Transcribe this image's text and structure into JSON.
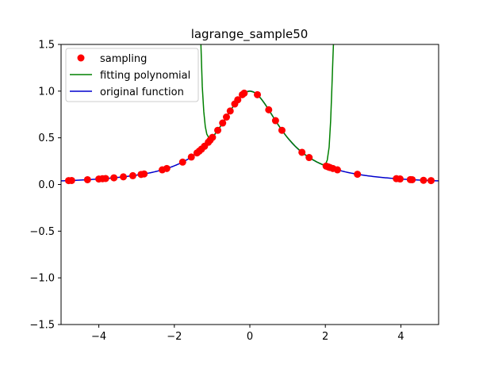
{
  "chart_data": {
    "type": "line",
    "title": "lagrange_sample50",
    "xlabel": "",
    "ylabel": "",
    "xlim": [
      -5,
      5
    ],
    "ylim": [
      -1.5,
      1.5
    ],
    "xticks": [
      -4,
      -2,
      0,
      2,
      4
    ],
    "yticks": [
      -1.5,
      -1.0,
      -0.5,
      0.0,
      0.5,
      1.0,
      1.5
    ],
    "xtick_labels": [
      "−4",
      "−2",
      "0",
      "2",
      "4"
    ],
    "ytick_labels": [
      "−1.5",
      "−1.0",
      "−0.5",
      "0.0",
      "0.5",
      "1.0",
      "1.5"
    ],
    "grid": false,
    "legend_position": "top-left",
    "legend": [
      {
        "label": "sampling",
        "color": "#ff0000",
        "kind": "marker"
      },
      {
        "label": "fitting polynomial",
        "color": "#008000",
        "kind": "line"
      },
      {
        "label": "original function",
        "color": "#0000cd",
        "kind": "line"
      }
    ],
    "sampling": {
      "color": "#ff0000",
      "x": [
        -4.8,
        -4.72,
        -4.3,
        -4.0,
        -3.9,
        -3.82,
        -3.6,
        -3.35,
        -3.1,
        -2.88,
        -2.8,
        -2.32,
        -2.2,
        -1.78,
        -1.55,
        -1.4,
        -1.34,
        -1.28,
        -1.2,
        -1.1,
        -1.05,
        -0.99,
        -0.85,
        -0.72,
        -0.62,
        -0.52,
        -0.4,
        -0.32,
        -0.2,
        -0.15,
        0.2,
        0.5,
        0.68,
        0.85,
        1.38,
        1.57,
        2.02,
        2.08,
        2.12,
        2.2,
        2.32,
        2.85,
        3.88,
        3.98,
        4.25,
        4.3,
        4.6,
        4.8
      ]
    },
    "fitting_polynomial": {
      "color": "#008000",
      "x": [
        -1.3,
        -1.26,
        -1.22,
        -1.18,
        -1.14,
        -1.1,
        -1.05,
        -1.0,
        -0.95,
        -0.9,
        -0.8,
        -0.7,
        -0.6,
        -0.5,
        -0.4,
        -0.3,
        -0.2,
        -0.1,
        0.0,
        0.1,
        0.2,
        0.3,
        0.4,
        0.5,
        0.6,
        0.7,
        0.8,
        0.9,
        1.0,
        1.2,
        1.4,
        1.6,
        1.8,
        1.95,
        2.0,
        2.05,
        2.1,
        2.14,
        2.17,
        2.2,
        2.22
      ],
      "y": [
        1.55,
        1.05,
        0.78,
        0.62,
        0.54,
        0.51,
        0.5,
        0.501,
        0.525,
        0.553,
        0.61,
        0.671,
        0.735,
        0.8,
        0.862,
        0.917,
        0.962,
        0.99,
        1.0,
        0.99,
        0.962,
        0.917,
        0.862,
        0.8,
        0.735,
        0.671,
        0.61,
        0.553,
        0.5,
        0.41,
        0.338,
        0.281,
        0.236,
        0.209,
        0.215,
        0.26,
        0.4,
        0.68,
        1.0,
        1.35,
        1.56
      ]
    },
    "original_function": {
      "color": "#0000cd",
      "formula": "1/(1+x^2)"
    }
  }
}
